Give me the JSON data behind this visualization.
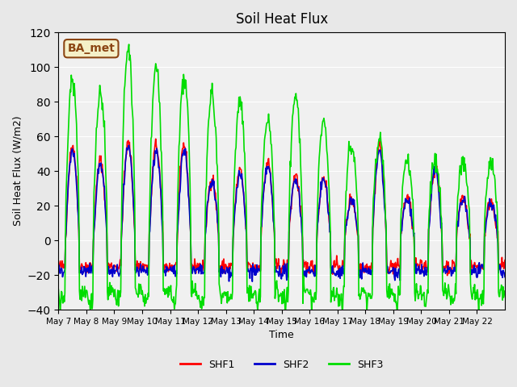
{
  "title": "Soil Heat Flux",
  "ylabel": "Soil Heat Flux (W/m2)",
  "xlabel": "Time",
  "ylim": [
    -40,
    120
  ],
  "annotation_text": "BA_met",
  "annotation_bg": "#f5f0c8",
  "annotation_border": "#8b4513",
  "background_color": "#e8e8e8",
  "plot_bg": "#f0f0f0",
  "legend_entries": [
    "SHF1",
    "SHF2",
    "SHF3"
  ],
  "legend_colors": [
    "#ff0000",
    "#0000cc",
    "#00dd00"
  ],
  "shf1_color": "#ff0000",
  "shf2_color": "#0000cc",
  "shf3_color": "#00dd00",
  "line_width": 1.2,
  "xtick_labels": [
    "May 7",
    "May 8",
    "May 9",
    "May 10",
    "May 11",
    "May 12",
    "May 13",
    "May 14",
    "May 15",
    "May 16",
    "May 17",
    "May 18",
    "May 19",
    "May 20",
    "May 21",
    "May 22"
  ],
  "num_days": 16,
  "start_day": 7,
  "day_amplitudes_shf1": [
    55,
    46,
    56,
    55,
    55,
    36,
    40,
    45,
    38,
    37,
    24,
    55,
    25,
    42,
    25,
    23
  ],
  "day_amplitudes_shf3": [
    93,
    85,
    110,
    99,
    94,
    85,
    80,
    69,
    83,
    67,
    55,
    59,
    46,
    46,
    46,
    46
  ]
}
